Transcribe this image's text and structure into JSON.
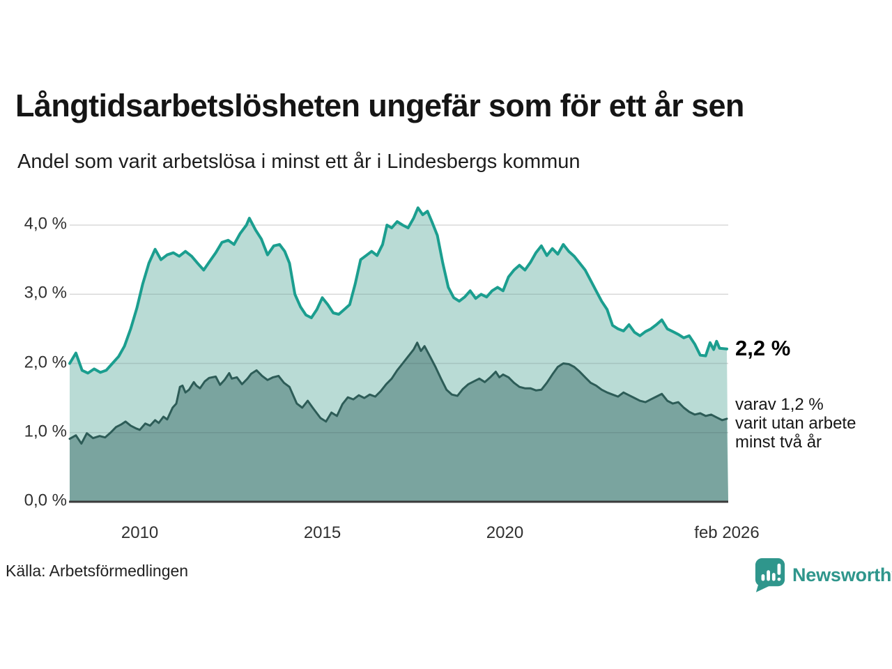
{
  "chart_data": {
    "type": "area",
    "title": "Långtidsarbetslösheten ungefär som för ett år sen",
    "subtitle": "Andel som varit arbetslösa i minst ett år i Lindesbergs kommun",
    "source": "Källa: Arbetsförmedlingen",
    "x_axis": {
      "range": [
        2008.08,
        2026.08
      ],
      "gridlines": false,
      "ticks": [
        {
          "label": "2010",
          "year": 2010
        },
        {
          "label": "2015",
          "year": 2015
        },
        {
          "label": "2020",
          "year": 2020
        },
        {
          "label": "feb 2026",
          "year": 2026.08
        }
      ]
    },
    "y_axis": {
      "range": [
        0,
        4.4
      ],
      "unit": "%",
      "gridlines": true,
      "ticks": [
        {
          "label": "4,0 %",
          "value": 4.0
        },
        {
          "label": "3,0 %",
          "value": 3.0
        },
        {
          "label": "2,0 %",
          "value": 2.0
        },
        {
          "label": "1,0 %",
          "value": 1.0
        },
        {
          "label": "0,0 %",
          "value": 0.0
        }
      ]
    },
    "colors": {
      "grid": "#d9d9d9",
      "grid_overlay": "rgba(45,60,58,0.15)",
      "baseline": "#3a3a3a"
    },
    "annotations": {
      "end_label": "2,2 %",
      "detail_lines": [
        "varav 1,2 %",
        "varit utan arbete",
        "minst två år"
      ]
    },
    "series": [
      {
        "name": "Andel arbetslösa minst ett år",
        "end_value": "2,2 %",
        "color": "#1b9e8f",
        "fill": "#b9dbd5",
        "points": [
          [
            2008.08,
            2.0
          ],
          [
            2008.25,
            2.15
          ],
          [
            2008.42,
            1.9
          ],
          [
            2008.58,
            1.86
          ],
          [
            2008.75,
            1.92
          ],
          [
            2008.92,
            1.87
          ],
          [
            2009.08,
            1.9
          ],
          [
            2009.25,
            2.0
          ],
          [
            2009.42,
            2.1
          ],
          [
            2009.58,
            2.25
          ],
          [
            2009.75,
            2.5
          ],
          [
            2009.92,
            2.8
          ],
          [
            2010.08,
            3.15
          ],
          [
            2010.25,
            3.45
          ],
          [
            2010.42,
            3.65
          ],
          [
            2010.58,
            3.5
          ],
          [
            2010.75,
            3.57
          ],
          [
            2010.92,
            3.6
          ],
          [
            2011.08,
            3.55
          ],
          [
            2011.25,
            3.62
          ],
          [
            2011.42,
            3.55
          ],
          [
            2011.58,
            3.45
          ],
          [
            2011.75,
            3.35
          ],
          [
            2011.92,
            3.48
          ],
          [
            2012.08,
            3.6
          ],
          [
            2012.25,
            3.75
          ],
          [
            2012.42,
            3.78
          ],
          [
            2012.58,
            3.72
          ],
          [
            2012.75,
            3.88
          ],
          [
            2012.92,
            4.0
          ],
          [
            2013.0,
            4.1
          ],
          [
            2013.17,
            3.93
          ],
          [
            2013.33,
            3.8
          ],
          [
            2013.5,
            3.57
          ],
          [
            2013.67,
            3.7
          ],
          [
            2013.83,
            3.72
          ],
          [
            2013.97,
            3.62
          ],
          [
            2014.1,
            3.45
          ],
          [
            2014.25,
            3.0
          ],
          [
            2014.4,
            2.82
          ],
          [
            2014.55,
            2.7
          ],
          [
            2014.7,
            2.66
          ],
          [
            2014.85,
            2.78
          ],
          [
            2015.0,
            2.95
          ],
          [
            2015.15,
            2.85
          ],
          [
            2015.3,
            2.73
          ],
          [
            2015.45,
            2.71
          ],
          [
            2015.6,
            2.78
          ],
          [
            2015.75,
            2.85
          ],
          [
            2015.9,
            3.15
          ],
          [
            2016.05,
            3.5
          ],
          [
            2016.2,
            3.56
          ],
          [
            2016.35,
            3.62
          ],
          [
            2016.5,
            3.56
          ],
          [
            2016.65,
            3.72
          ],
          [
            2016.77,
            4.0
          ],
          [
            2016.9,
            3.96
          ],
          [
            2017.05,
            4.05
          ],
          [
            2017.2,
            4.0
          ],
          [
            2017.35,
            3.96
          ],
          [
            2017.5,
            4.1
          ],
          [
            2017.62,
            4.25
          ],
          [
            2017.75,
            4.15
          ],
          [
            2017.88,
            4.2
          ],
          [
            2018.0,
            4.05
          ],
          [
            2018.15,
            3.85
          ],
          [
            2018.3,
            3.45
          ],
          [
            2018.45,
            3.1
          ],
          [
            2018.6,
            2.95
          ],
          [
            2018.75,
            2.9
          ],
          [
            2018.9,
            2.96
          ],
          [
            2019.05,
            3.05
          ],
          [
            2019.2,
            2.94
          ],
          [
            2019.35,
            3.0
          ],
          [
            2019.5,
            2.96
          ],
          [
            2019.65,
            3.05
          ],
          [
            2019.8,
            3.1
          ],
          [
            2019.95,
            3.05
          ],
          [
            2020.1,
            3.25
          ],
          [
            2020.25,
            3.35
          ],
          [
            2020.4,
            3.42
          ],
          [
            2020.55,
            3.35
          ],
          [
            2020.7,
            3.46
          ],
          [
            2020.85,
            3.6
          ],
          [
            2021.0,
            3.7
          ],
          [
            2021.15,
            3.56
          ],
          [
            2021.3,
            3.66
          ],
          [
            2021.45,
            3.58
          ],
          [
            2021.6,
            3.72
          ],
          [
            2021.75,
            3.62
          ],
          [
            2021.9,
            3.55
          ],
          [
            2022.05,
            3.45
          ],
          [
            2022.2,
            3.35
          ],
          [
            2022.35,
            3.2
          ],
          [
            2022.5,
            3.05
          ],
          [
            2022.65,
            2.9
          ],
          [
            2022.8,
            2.78
          ],
          [
            2022.95,
            2.55
          ],
          [
            2023.1,
            2.5
          ],
          [
            2023.25,
            2.47
          ],
          [
            2023.4,
            2.56
          ],
          [
            2023.55,
            2.45
          ],
          [
            2023.7,
            2.4
          ],
          [
            2023.85,
            2.46
          ],
          [
            2024.0,
            2.5
          ],
          [
            2024.15,
            2.56
          ],
          [
            2024.3,
            2.63
          ],
          [
            2024.45,
            2.5
          ],
          [
            2024.6,
            2.46
          ],
          [
            2024.75,
            2.42
          ],
          [
            2024.9,
            2.37
          ],
          [
            2025.05,
            2.4
          ],
          [
            2025.2,
            2.28
          ],
          [
            2025.35,
            2.12
          ],
          [
            2025.5,
            2.11
          ],
          [
            2025.62,
            2.3
          ],
          [
            2025.72,
            2.2
          ],
          [
            2025.8,
            2.32
          ],
          [
            2025.88,
            2.22
          ],
          [
            2026.08,
            2.21
          ]
        ]
      },
      {
        "name": "varav utan arbete minst två år",
        "end_value": "1,2 %",
        "color": "#2d5c57",
        "fill": "#7aa49f",
        "points": [
          [
            2008.08,
            0.91
          ],
          [
            2008.25,
            0.96
          ],
          [
            2008.4,
            0.84
          ],
          [
            2008.55,
            0.99
          ],
          [
            2008.72,
            0.92
          ],
          [
            2008.9,
            0.95
          ],
          [
            2009.05,
            0.93
          ],
          [
            2009.2,
            1.0
          ],
          [
            2009.35,
            1.08
          ],
          [
            2009.5,
            1.12
          ],
          [
            2009.61,
            1.16
          ],
          [
            2009.75,
            1.1
          ],
          [
            2009.9,
            1.06
          ],
          [
            2010.0,
            1.04
          ],
          [
            2010.15,
            1.13
          ],
          [
            2010.28,
            1.1
          ],
          [
            2010.42,
            1.18
          ],
          [
            2010.52,
            1.14
          ],
          [
            2010.65,
            1.23
          ],
          [
            2010.75,
            1.19
          ],
          [
            2010.9,
            1.36
          ],
          [
            2011.0,
            1.42
          ],
          [
            2011.1,
            1.66
          ],
          [
            2011.17,
            1.68
          ],
          [
            2011.25,
            1.58
          ],
          [
            2011.35,
            1.62
          ],
          [
            2011.48,
            1.73
          ],
          [
            2011.55,
            1.68
          ],
          [
            2011.65,
            1.64
          ],
          [
            2011.78,
            1.74
          ],
          [
            2011.9,
            1.79
          ],
          [
            2012.08,
            1.81
          ],
          [
            2012.2,
            1.69
          ],
          [
            2012.32,
            1.76
          ],
          [
            2012.45,
            1.86
          ],
          [
            2012.52,
            1.78
          ],
          [
            2012.66,
            1.8
          ],
          [
            2012.8,
            1.7
          ],
          [
            2012.95,
            1.78
          ],
          [
            2013.05,
            1.85
          ],
          [
            2013.2,
            1.9
          ],
          [
            2013.35,
            1.82
          ],
          [
            2013.5,
            1.76
          ],
          [
            2013.65,
            1.8
          ],
          [
            2013.8,
            1.82
          ],
          [
            2013.95,
            1.72
          ],
          [
            2014.1,
            1.66
          ],
          [
            2014.3,
            1.42
          ],
          [
            2014.45,
            1.36
          ],
          [
            2014.6,
            1.46
          ],
          [
            2014.75,
            1.35
          ],
          [
            2014.95,
            1.21
          ],
          [
            2015.1,
            1.16
          ],
          [
            2015.25,
            1.29
          ],
          [
            2015.4,
            1.24
          ],
          [
            2015.55,
            1.41
          ],
          [
            2015.7,
            1.51
          ],
          [
            2015.85,
            1.48
          ],
          [
            2016.0,
            1.54
          ],
          [
            2016.15,
            1.5
          ],
          [
            2016.3,
            1.55
          ],
          [
            2016.45,
            1.52
          ],
          [
            2016.6,
            1.6
          ],
          [
            2016.75,
            1.7
          ],
          [
            2016.9,
            1.78
          ],
          [
            2017.05,
            1.9
          ],
          [
            2017.2,
            2.0
          ],
          [
            2017.35,
            2.1
          ],
          [
            2017.5,
            2.2
          ],
          [
            2017.6,
            2.3
          ],
          [
            2017.7,
            2.18
          ],
          [
            2017.8,
            2.25
          ],
          [
            2017.95,
            2.1
          ],
          [
            2018.1,
            1.95
          ],
          [
            2018.25,
            1.78
          ],
          [
            2018.4,
            1.62
          ],
          [
            2018.55,
            1.55
          ],
          [
            2018.7,
            1.53
          ],
          [
            2018.85,
            1.63
          ],
          [
            2019.0,
            1.7
          ],
          [
            2019.15,
            1.74
          ],
          [
            2019.3,
            1.78
          ],
          [
            2019.45,
            1.73
          ],
          [
            2019.6,
            1.8
          ],
          [
            2019.75,
            1.88
          ],
          [
            2019.85,
            1.8
          ],
          [
            2019.95,
            1.84
          ],
          [
            2020.1,
            1.8
          ],
          [
            2020.25,
            1.72
          ],
          [
            2020.4,
            1.66
          ],
          [
            2020.55,
            1.64
          ],
          [
            2020.7,
            1.64
          ],
          [
            2020.85,
            1.61
          ],
          [
            2021.0,
            1.62
          ],
          [
            2021.15,
            1.72
          ],
          [
            2021.3,
            1.84
          ],
          [
            2021.45,
            1.95
          ],
          [
            2021.6,
            2.0
          ],
          [
            2021.75,
            1.99
          ],
          [
            2021.9,
            1.95
          ],
          [
            2022.05,
            1.88
          ],
          [
            2022.2,
            1.8
          ],
          [
            2022.35,
            1.72
          ],
          [
            2022.5,
            1.68
          ],
          [
            2022.65,
            1.62
          ],
          [
            2022.8,
            1.58
          ],
          [
            2022.95,
            1.55
          ],
          [
            2023.1,
            1.52
          ],
          [
            2023.25,
            1.58
          ],
          [
            2023.4,
            1.54
          ],
          [
            2023.55,
            1.5
          ],
          [
            2023.7,
            1.46
          ],
          [
            2023.85,
            1.44
          ],
          [
            2024.0,
            1.48
          ],
          [
            2024.15,
            1.52
          ],
          [
            2024.3,
            1.56
          ],
          [
            2024.45,
            1.46
          ],
          [
            2024.6,
            1.42
          ],
          [
            2024.75,
            1.44
          ],
          [
            2024.9,
            1.36
          ],
          [
            2025.05,
            1.3
          ],
          [
            2025.2,
            1.26
          ],
          [
            2025.35,
            1.28
          ],
          [
            2025.5,
            1.24
          ],
          [
            2025.65,
            1.26
          ],
          [
            2025.8,
            1.22
          ],
          [
            2025.95,
            1.18
          ],
          [
            2026.08,
            1.2
          ]
        ]
      }
    ]
  },
  "branding": {
    "wordmark": "Newsworthy",
    "logo_icon": "newsworthy-bar-chart-bubble-icon",
    "brand_color": "#2f968c"
  }
}
